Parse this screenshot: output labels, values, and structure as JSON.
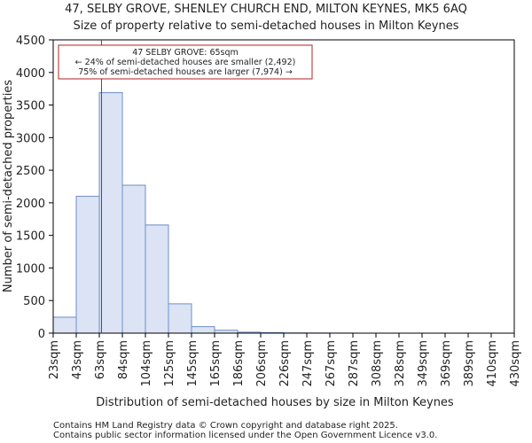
{
  "chart_data": {
    "type": "histogram",
    "title": "47, SELBY GROVE, SHENLEY CHURCH END, MILTON KEYNES, MK5 6AQ",
    "subtitle": "Size of property relative to semi-detached houses in Milton Keynes",
    "xlabel": "Distribution of semi-detached houses by size in Milton Keynes",
    "ylabel": "Number of semi-detached properties",
    "ylim": [
      0,
      4500
    ],
    "yticks": [
      0,
      500,
      1000,
      1500,
      2000,
      2500,
      3000,
      3500,
      4000,
      4500
    ],
    "categories": [
      "23sqm",
      "43sqm",
      "63sqm",
      "84sqm",
      "104sqm",
      "125sqm",
      "145sqm",
      "165sqm",
      "186sqm",
      "206sqm",
      "226sqm",
      "247sqm",
      "267sqm",
      "287sqm",
      "308sqm",
      "328sqm",
      "349sqm",
      "369sqm",
      "389sqm",
      "410sqm",
      "430sqm"
    ],
    "values": [
      245,
      2100,
      3690,
      2270,
      1660,
      450,
      100,
      45,
      15,
      8,
      3,
      2,
      1,
      0,
      0,
      0,
      0,
      0,
      0,
      0
    ],
    "bar_fill": "#dbe3f4",
    "bar_stroke": "#6d8fc7",
    "marker": {
      "value_sqm": 65,
      "color": "#b22222",
      "lines": [
        "47 SELBY GROVE: 65sqm",
        "← 24% of semi-detached houses are smaller (2,492)",
        "75% of semi-detached houses are larger (7,974) →"
      ]
    }
  },
  "footer": {
    "line1": "Contains HM Land Registry data © Crown copyright and database right 2025.",
    "line2": "Contains public sector information licensed under the Open Government Licence v3.0."
  }
}
